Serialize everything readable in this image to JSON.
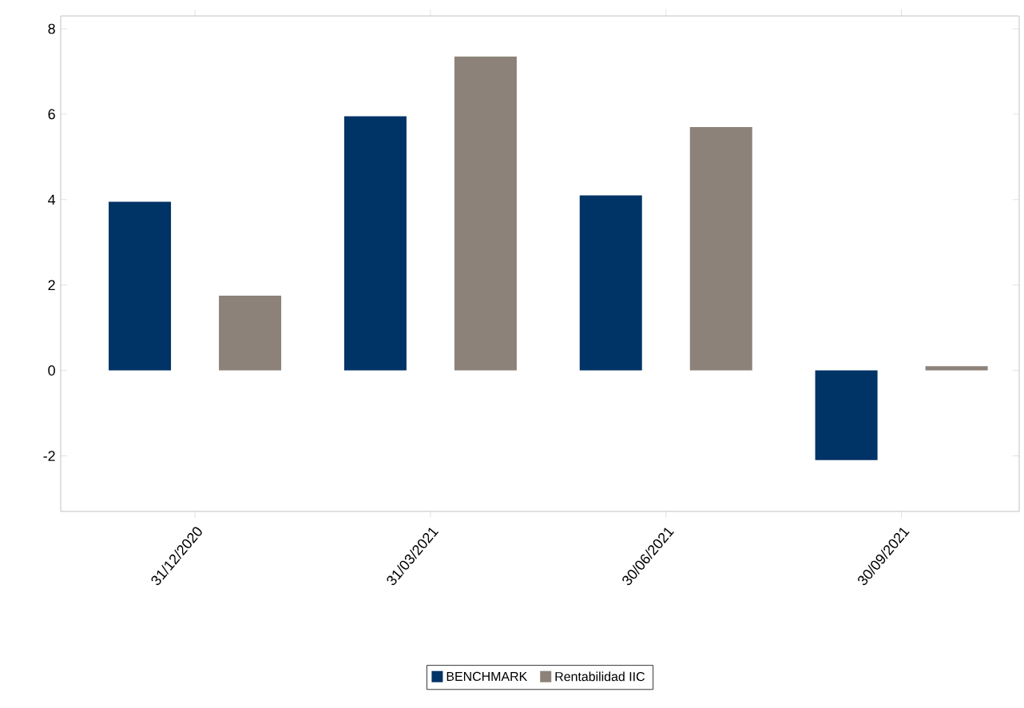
{
  "chart_data": {
    "type": "bar",
    "categories": [
      "31/12/2020",
      "31/03/2021",
      "30/06/2021",
      "30/09/2021"
    ],
    "series": [
      {
        "name": "BENCHMARK",
        "color": "#003366",
        "values": [
          3.95,
          5.95,
          4.1,
          -2.1
        ]
      },
      {
        "name": "Rentabilidad IIC",
        "color": "#8c8279",
        "values": [
          1.75,
          7.35,
          5.7,
          0.1
        ]
      }
    ],
    "ylim": [
      -3.3,
      8.3
    ],
    "yticks": [
      -2,
      0,
      2,
      4,
      6,
      8
    ],
    "grid": false,
    "legend": "bottom"
  }
}
